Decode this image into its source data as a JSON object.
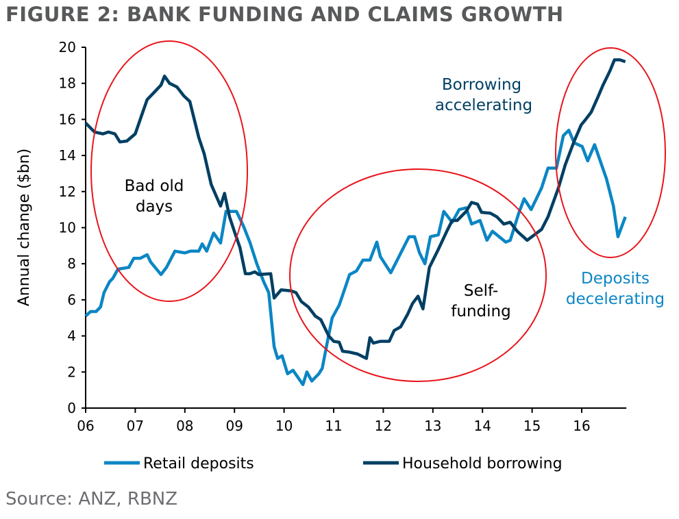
{
  "title": "FIGURE 2: BANK FUNDING AND CLAIMS GROWTH",
  "source": "Source: ANZ, RBNZ",
  "colors": {
    "retail": "#0b86c4",
    "household": "#003f63",
    "ellipse": "#e8141b"
  },
  "chart_data": {
    "type": "line",
    "title": "FIGURE 2: BANK FUNDING AND CLAIMS GROWTH",
    "xlabel": "",
    "ylabel": "Annual change ($bn)",
    "xlim": [
      6,
      16.9
    ],
    "ylim": [
      0,
      20
    ],
    "xticks": [
      6,
      7,
      8,
      9,
      10,
      11,
      12,
      13,
      14,
      15,
      16
    ],
    "xtick_labels": [
      "06",
      "07",
      "08",
      "09",
      "10",
      "11",
      "12",
      "13",
      "14",
      "15",
      "16"
    ],
    "yticks": [
      0,
      2,
      4,
      6,
      8,
      10,
      12,
      14,
      16,
      18,
      20
    ],
    "ytick_labels": [
      "0",
      "2",
      "4",
      "6",
      "8",
      "10",
      "12",
      "14",
      "16",
      "18",
      "20"
    ],
    "legend_position": "bottom",
    "series": [
      {
        "name": "Retail deposits",
        "points": [
          [
            6.0,
            5.1
          ],
          [
            6.1,
            5.35
          ],
          [
            6.21,
            5.35
          ],
          [
            6.3,
            5.6
          ],
          [
            6.37,
            6.4
          ],
          [
            6.48,
            7.0
          ],
          [
            6.55,
            7.2
          ],
          [
            6.65,
            7.7
          ],
          [
            6.87,
            7.8
          ],
          [
            6.97,
            8.3
          ],
          [
            7.1,
            8.3
          ],
          [
            7.24,
            8.5
          ],
          [
            7.31,
            8.1
          ],
          [
            7.52,
            7.4
          ],
          [
            7.63,
            7.8
          ],
          [
            7.8,
            8.7
          ],
          [
            8.0,
            8.6
          ],
          [
            8.11,
            8.7
          ],
          [
            8.28,
            8.7
          ],
          [
            8.35,
            9.1
          ],
          [
            8.44,
            8.7
          ],
          [
            8.58,
            9.7
          ],
          [
            8.72,
            9.15
          ],
          [
            8.83,
            10.9
          ],
          [
            9.04,
            10.9
          ],
          [
            9.18,
            10.1
          ],
          [
            9.31,
            9.2
          ],
          [
            9.45,
            8.0
          ],
          [
            9.59,
            7.0
          ],
          [
            9.69,
            6.4
          ],
          [
            9.8,
            3.4
          ],
          [
            9.87,
            2.75
          ],
          [
            9.96,
            2.9
          ],
          [
            10.07,
            1.9
          ],
          [
            10.18,
            2.1
          ],
          [
            10.38,
            1.3
          ],
          [
            10.46,
            2.0
          ],
          [
            10.56,
            1.5
          ],
          [
            10.7,
            1.9
          ],
          [
            10.77,
            2.2
          ],
          [
            10.86,
            3.5
          ],
          [
            10.97,
            5.0
          ],
          [
            11.11,
            5.7
          ],
          [
            11.21,
            6.5
          ],
          [
            11.32,
            7.4
          ],
          [
            11.46,
            7.6
          ],
          [
            11.59,
            8.2
          ],
          [
            11.73,
            8.2
          ],
          [
            11.87,
            9.2
          ],
          [
            11.94,
            8.4
          ],
          [
            12.15,
            7.5
          ],
          [
            12.28,
            8.2
          ],
          [
            12.52,
            9.5
          ],
          [
            12.63,
            9.5
          ],
          [
            12.73,
            8.6
          ],
          [
            12.84,
            8.0
          ],
          [
            12.95,
            9.5
          ],
          [
            13.11,
            9.6
          ],
          [
            13.22,
            10.9
          ],
          [
            13.39,
            10.3
          ],
          [
            13.53,
            11.0
          ],
          [
            13.67,
            11.1
          ],
          [
            13.78,
            10.2
          ],
          [
            13.95,
            10.4
          ],
          [
            14.09,
            9.3
          ],
          [
            14.2,
            9.8
          ],
          [
            14.47,
            9.2
          ],
          [
            14.56,
            9.3
          ],
          [
            14.73,
            10.8
          ],
          [
            14.84,
            11.6
          ],
          [
            14.98,
            11.0
          ],
          [
            15.19,
            12.2
          ],
          [
            15.32,
            13.3
          ],
          [
            15.49,
            13.3
          ],
          [
            15.63,
            15.1
          ],
          [
            15.74,
            15.4
          ],
          [
            15.85,
            14.7
          ],
          [
            16.01,
            14.5
          ],
          [
            16.12,
            13.7
          ],
          [
            16.26,
            14.6
          ],
          [
            16.5,
            12.7
          ],
          [
            16.64,
            11.2
          ],
          [
            16.73,
            9.5
          ],
          [
            16.88,
            10.6
          ]
        ]
      },
      {
        "name": "Household borrowing",
        "points": [
          [
            6.0,
            15.8
          ],
          [
            6.18,
            15.3
          ],
          [
            6.35,
            15.2
          ],
          [
            6.46,
            15.3
          ],
          [
            6.59,
            15.2
          ],
          [
            6.69,
            14.75
          ],
          [
            6.83,
            14.8
          ],
          [
            7.0,
            15.2
          ],
          [
            7.15,
            16.4
          ],
          [
            7.24,
            17.1
          ],
          [
            7.38,
            17.5
          ],
          [
            7.52,
            17.9
          ],
          [
            7.59,
            18.4
          ],
          [
            7.69,
            18.0
          ],
          [
            7.84,
            17.8
          ],
          [
            7.98,
            17.3
          ],
          [
            8.1,
            17.0
          ],
          [
            8.28,
            15.0
          ],
          [
            8.39,
            14.1
          ],
          [
            8.53,
            12.4
          ],
          [
            8.72,
            11.2
          ],
          [
            8.8,
            11.9
          ],
          [
            8.9,
            10.6
          ],
          [
            9.01,
            9.7
          ],
          [
            9.11,
            8.9
          ],
          [
            9.22,
            7.45
          ],
          [
            9.31,
            7.45
          ],
          [
            9.41,
            7.55
          ],
          [
            9.49,
            7.4
          ],
          [
            9.73,
            7.45
          ],
          [
            9.8,
            6.1
          ],
          [
            9.94,
            6.55
          ],
          [
            10.14,
            6.5
          ],
          [
            10.24,
            6.4
          ],
          [
            10.35,
            5.9
          ],
          [
            10.49,
            5.6
          ],
          [
            10.63,
            5.1
          ],
          [
            10.74,
            4.9
          ],
          [
            10.9,
            4.0
          ],
          [
            11.0,
            3.7
          ],
          [
            11.11,
            3.65
          ],
          [
            11.18,
            3.15
          ],
          [
            11.32,
            3.1
          ],
          [
            11.48,
            3.0
          ],
          [
            11.66,
            2.75
          ],
          [
            11.73,
            3.9
          ],
          [
            11.8,
            3.6
          ],
          [
            11.94,
            3.7
          ],
          [
            12.12,
            3.7
          ],
          [
            12.22,
            4.3
          ],
          [
            12.35,
            4.5
          ],
          [
            12.49,
            5.2
          ],
          [
            12.59,
            5.8
          ],
          [
            12.7,
            6.2
          ],
          [
            12.8,
            5.5
          ],
          [
            12.93,
            7.8
          ],
          [
            13.11,
            8.8
          ],
          [
            13.28,
            9.8
          ],
          [
            13.39,
            10.4
          ],
          [
            13.49,
            10.4
          ],
          [
            13.67,
            10.9
          ],
          [
            13.78,
            11.4
          ],
          [
            13.9,
            11.3
          ],
          [
            13.98,
            10.85
          ],
          [
            14.16,
            10.8
          ],
          [
            14.29,
            10.6
          ],
          [
            14.43,
            10.2
          ],
          [
            14.56,
            10.3
          ],
          [
            14.7,
            9.8
          ],
          [
            14.9,
            9.3
          ],
          [
            15.19,
            9.9
          ],
          [
            15.32,
            10.6
          ],
          [
            15.53,
            12.2
          ],
          [
            15.67,
            13.5
          ],
          [
            15.85,
            14.8
          ],
          [
            15.99,
            15.7
          ],
          [
            16.08,
            16.0
          ],
          [
            16.19,
            16.4
          ],
          [
            16.32,
            17.2
          ],
          [
            16.43,
            17.9
          ],
          [
            16.57,
            18.7
          ],
          [
            16.66,
            19.3
          ],
          [
            16.77,
            19.3
          ],
          [
            16.88,
            19.2
          ]
        ]
      }
    ],
    "annotations": [
      {
        "text_lines": [
          "Bad old",
          "days"
        ]
      },
      {
        "text_lines": [
          "Self-",
          "funding"
        ]
      },
      {
        "text_lines": [
          "Borrowing",
          "accelerating"
        ]
      },
      {
        "text_lines": [
          "Deposits",
          "decelerating"
        ]
      }
    ]
  }
}
